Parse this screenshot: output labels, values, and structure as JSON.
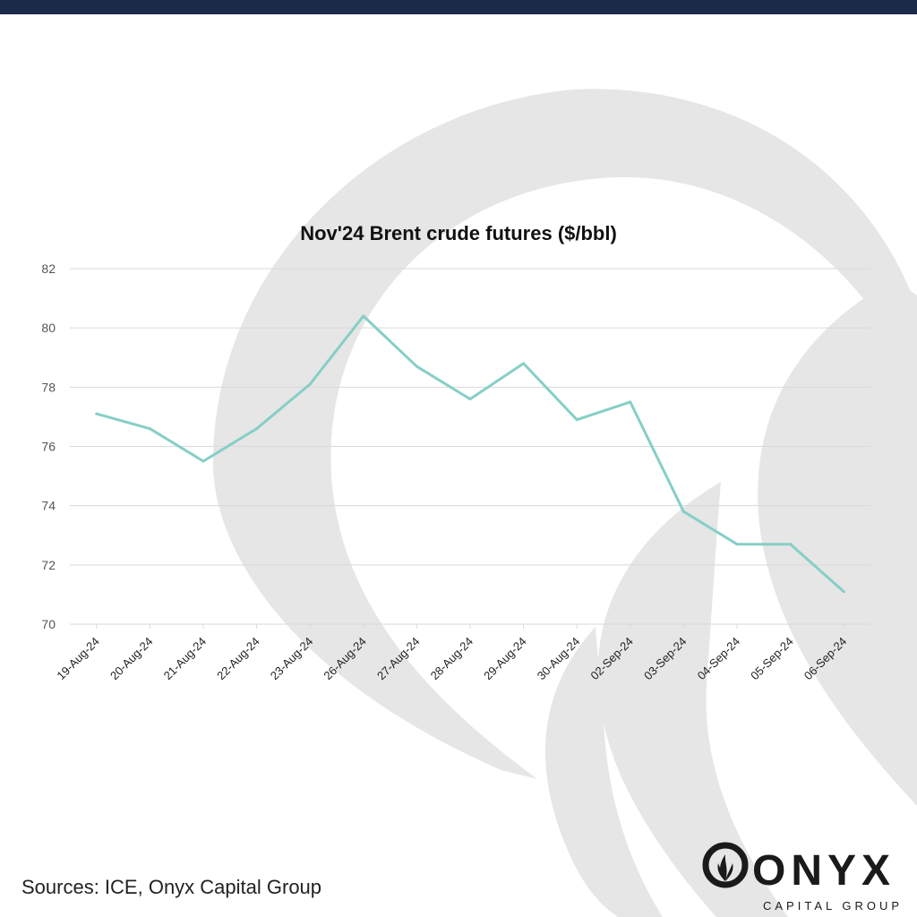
{
  "colors": {
    "top_bar": "#1c2a4a",
    "line": "#86cfc6",
    "grid": "#d9d9d9",
    "watermark": "#e6e6e6",
    "logo": "#1a1a1a"
  },
  "footer": {
    "source": "Sources: ICE, Onyx Capital Group"
  },
  "logo": {
    "word": "ONYX",
    "tagline": "CAPITAL GROUP",
    "icon": "flame-icon"
  },
  "chart_data": {
    "type": "line",
    "title": "Nov'24 Brent crude futures ($/bbl)",
    "xlabel": "",
    "ylabel": "",
    "ylim": [
      70,
      82
    ],
    "yticks": [
      70,
      72,
      74,
      76,
      78,
      80,
      82
    ],
    "grid": true,
    "legend": "none",
    "categories": [
      "19-Aug-24",
      "20-Aug-24",
      "21-Aug-24",
      "22-Aug-24",
      "23-Aug-24",
      "26-Aug-24",
      "27-Aug-24",
      "28-Aug-24",
      "29-Aug-24",
      "30-Aug-24",
      "02-Sep-24",
      "03-Sep-24",
      "04-Sep-24",
      "05-Sep-24",
      "06-Sep-24"
    ],
    "series": [
      {
        "values": [
          77.1,
          76.6,
          75.5,
          76.6,
          78.1,
          80.4,
          78.7,
          77.6,
          78.8,
          76.9,
          77.5,
          73.8,
          72.7,
          72.7,
          71.1
        ]
      }
    ]
  }
}
